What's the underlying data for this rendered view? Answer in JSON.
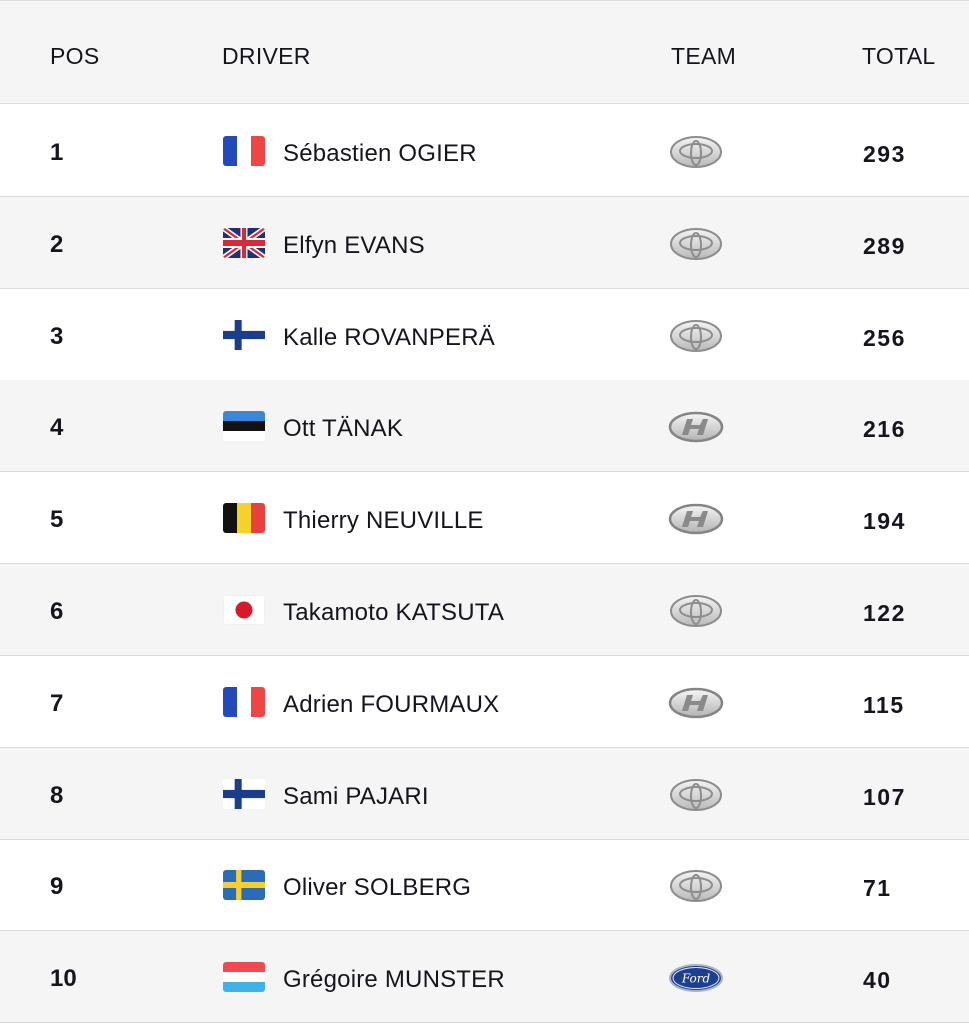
{
  "columns": {
    "pos": "POS",
    "driver": "DRIVER",
    "team": "TEAM",
    "total": "TOTAL"
  },
  "rows": [
    {
      "pos": "1",
      "driver": "Sébastien OGIER",
      "flag": "france",
      "team_icon": "toyota-logo-icon",
      "total": "293"
    },
    {
      "pos": "2",
      "driver": "Elfyn EVANS",
      "flag": "uk",
      "team_icon": "toyota-logo-icon",
      "total": "289"
    },
    {
      "pos": "3",
      "driver": "Kalle ROVANPERÄ",
      "flag": "finland",
      "team_icon": "toyota-logo-icon",
      "total": "256"
    },
    {
      "pos": "4",
      "driver": "Ott TÄNAK",
      "flag": "estonia",
      "team_icon": "hyundai-logo-icon",
      "total": "216"
    },
    {
      "pos": "5",
      "driver": "Thierry NEUVILLE",
      "flag": "belgium",
      "team_icon": "hyundai-logo-icon",
      "total": "194"
    },
    {
      "pos": "6",
      "driver": "Takamoto KATSUTA",
      "flag": "japan",
      "team_icon": "toyota-logo-icon",
      "total": "122"
    },
    {
      "pos": "7",
      "driver": "Adrien FOURMAUX",
      "flag": "france",
      "team_icon": "hyundai-logo-icon",
      "total": "115"
    },
    {
      "pos": "8",
      "driver": "Sami PAJARI",
      "flag": "finland",
      "team_icon": "toyota-logo-icon",
      "total": "107"
    },
    {
      "pos": "9",
      "driver": "Oliver SOLBERG",
      "flag": "sweden",
      "team_icon": "toyota-logo-icon",
      "total": "71"
    },
    {
      "pos": "10",
      "driver": "Grégoire MUNSTER",
      "flag": "luxembourg",
      "team_icon": "ford-logo-icon",
      "total": "40"
    }
  ]
}
